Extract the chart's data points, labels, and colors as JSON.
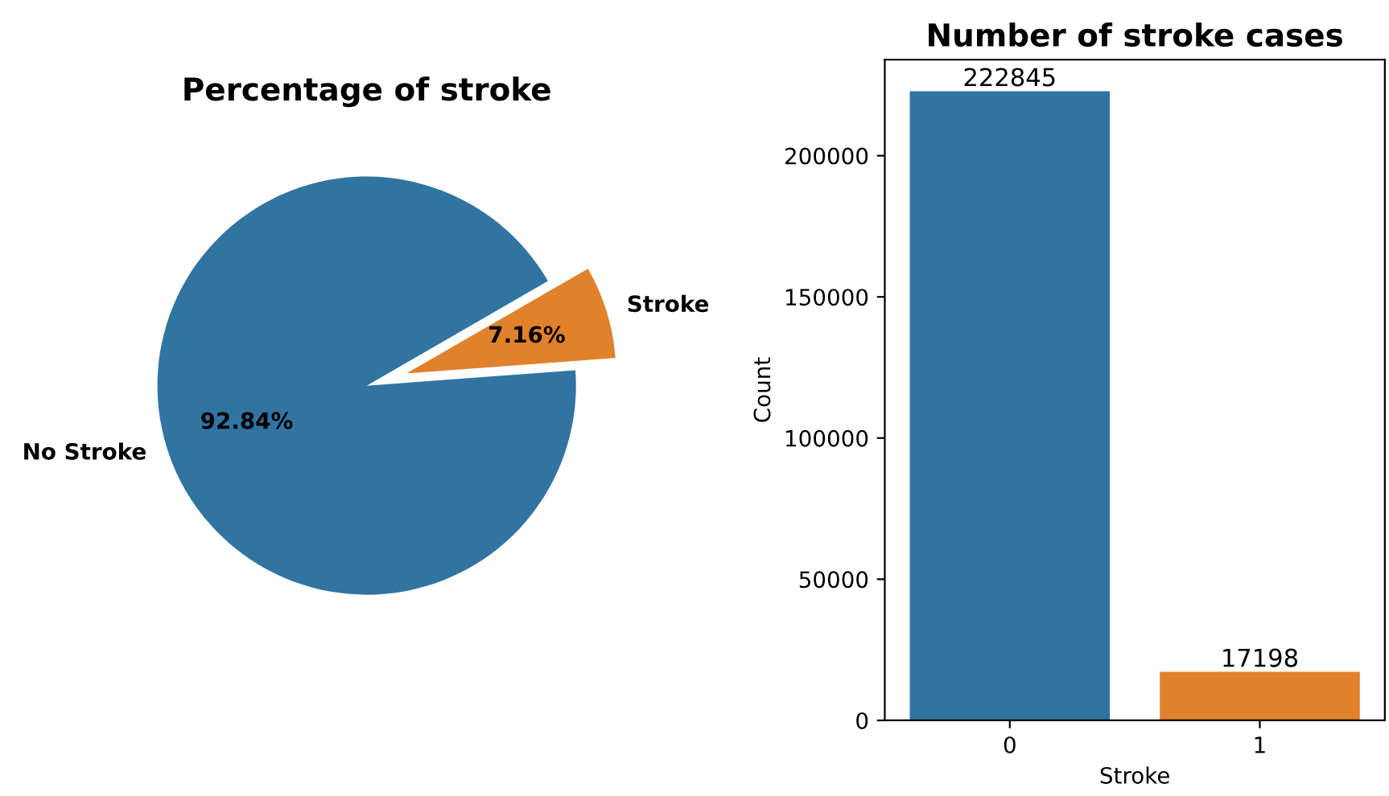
{
  "chart_data": [
    {
      "type": "pie",
      "title": "Percentage of stroke",
      "categories": [
        "No Stroke",
        "Stroke"
      ],
      "values": [
        92.84,
        7.16
      ],
      "colors": [
        "#3274a1",
        "#e1812c"
      ],
      "value_labels": [
        "92.84%",
        "7.16%"
      ]
    },
    {
      "type": "bar",
      "title": "Number of stroke cases",
      "xlabel": "Stroke",
      "ylabel": "Count",
      "categories": [
        "0",
        "1"
      ],
      "values": [
        222845,
        17198
      ],
      "colors": [
        "#3274a1",
        "#e1812c"
      ],
      "ylim": [
        0,
        234000
      ],
      "yticks": [
        0,
        50000,
        100000,
        150000,
        200000
      ],
      "data_labels": true,
      "grid": false,
      "legend": false
    }
  ]
}
